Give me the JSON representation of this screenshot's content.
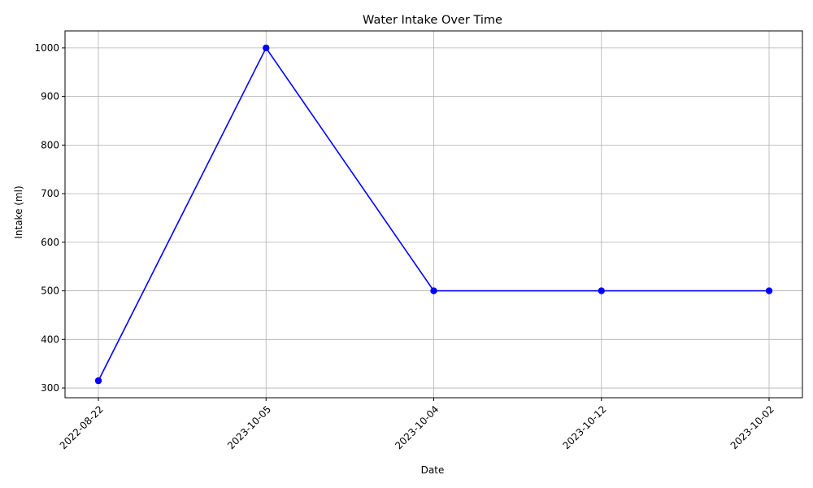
{
  "chart_data": {
    "type": "line",
    "title": "Water Intake Over Time",
    "xlabel": "Date",
    "ylabel": "Intake (ml)",
    "categories": [
      "2022-08-22",
      "2023-10-05",
      "2023-10-04",
      "2023-10-12",
      "2023-10-02"
    ],
    "series": [
      {
        "values": [
          315,
          1000,
          500,
          500,
          500
        ],
        "color": "#0000ff",
        "marker": "circle"
      }
    ],
    "ylim": [
      280,
      1035
    ],
    "yticks": [
      300,
      400,
      500,
      600,
      700,
      800,
      900,
      1000
    ],
    "grid": true,
    "x_tick_rotation": 45
  }
}
